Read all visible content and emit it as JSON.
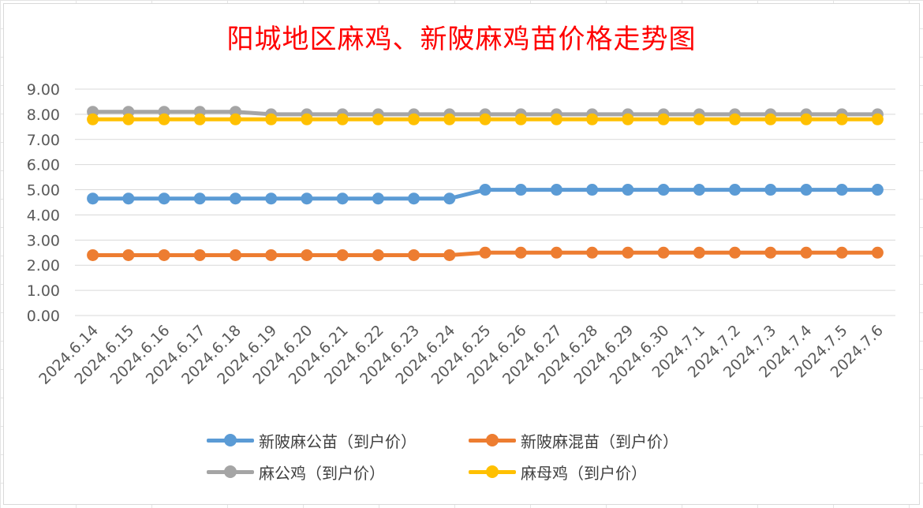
{
  "chart_data": {
    "type": "line",
    "title": "阳城地区麻鸡、新陂麻鸡苗价格走势图",
    "categories": [
      "2024.6.14",
      "2024.6.15",
      "2024.6.16",
      "2024.6.17",
      "2024.6.18",
      "2024.6.19",
      "2024.6.20",
      "2024.6.21",
      "2024.6.22",
      "2024.6.23",
      "2024.6.24",
      "2024.6.25",
      "2024.6.26",
      "2024.6.27",
      "2024.6.28",
      "2024.6.29",
      "2024.6.30",
      "2024.7.1",
      "2024.7.2",
      "2024.7.3",
      "2024.7.4",
      "2024.7.5",
      "2024.7.6"
    ],
    "ylim": [
      0,
      9
    ],
    "y_ticks": [
      "0.00",
      "1.00",
      "2.00",
      "3.00",
      "4.00",
      "5.00",
      "6.00",
      "7.00",
      "8.00",
      "9.00"
    ],
    "grid": "horizontal",
    "legend_position": "bottom",
    "series": [
      {
        "name": "新陂麻公苗（到户价）",
        "color": "#5b9bd5",
        "values": [
          4.65,
          4.65,
          4.65,
          4.65,
          4.65,
          4.65,
          4.65,
          4.65,
          4.65,
          4.65,
          4.65,
          5.0,
          5.0,
          5.0,
          5.0,
          5.0,
          5.0,
          5.0,
          5.0,
          5.0,
          5.0,
          5.0,
          5.0
        ]
      },
      {
        "name": "新陂麻混苗（到户价）",
        "color": "#ed7d31",
        "values": [
          2.4,
          2.4,
          2.4,
          2.4,
          2.4,
          2.4,
          2.4,
          2.4,
          2.4,
          2.4,
          2.4,
          2.5,
          2.5,
          2.5,
          2.5,
          2.5,
          2.5,
          2.5,
          2.5,
          2.5,
          2.5,
          2.5,
          2.5
        ]
      },
      {
        "name": "麻公鸡（到户价）",
        "color": "#a5a5a5",
        "values": [
          8.1,
          8.1,
          8.1,
          8.1,
          8.1,
          8.0,
          8.0,
          8.0,
          8.0,
          8.0,
          8.0,
          8.0,
          8.0,
          8.0,
          8.0,
          8.0,
          8.0,
          8.0,
          8.0,
          8.0,
          8.0,
          8.0,
          8.0
        ]
      },
      {
        "name": "麻母鸡（到户价）",
        "color": "#ffc000",
        "values": [
          7.8,
          7.8,
          7.8,
          7.8,
          7.8,
          7.8,
          7.8,
          7.8,
          7.8,
          7.8,
          7.8,
          7.8,
          7.8,
          7.8,
          7.8,
          7.8,
          7.8,
          7.8,
          7.8,
          7.8,
          7.8,
          7.8,
          7.8
        ]
      }
    ]
  }
}
